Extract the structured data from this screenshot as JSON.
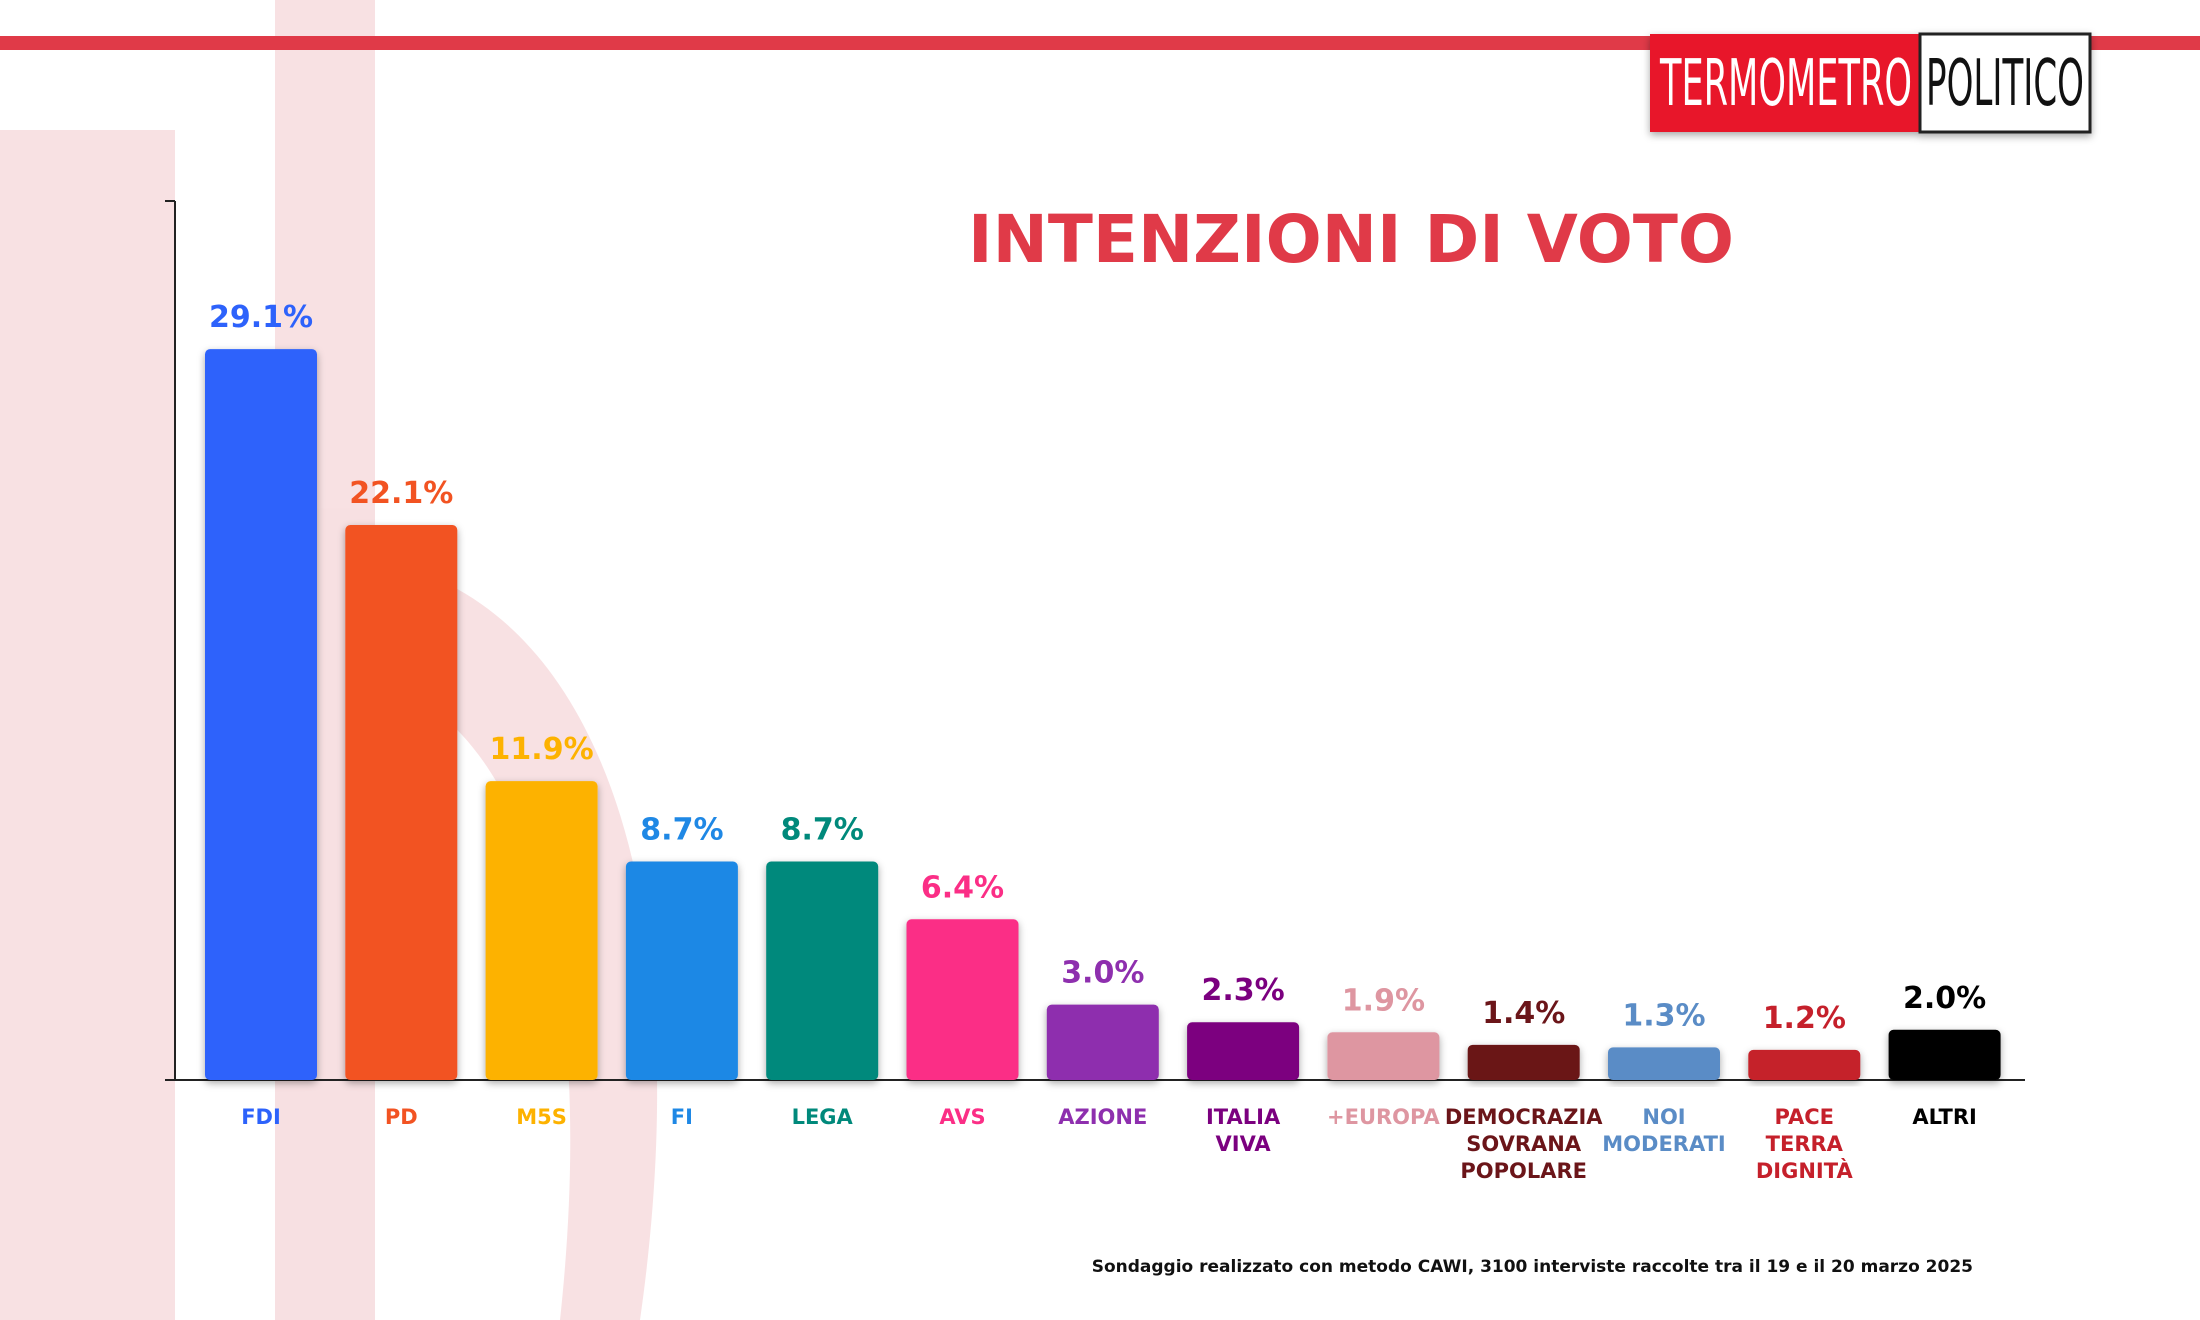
{
  "brand": {
    "part1": "TERMOMETRO",
    "part2": "POLITICO"
  },
  "chart_data": {
    "type": "bar",
    "title": "INTENZIONI DI VOTO",
    "categories": [
      "FDI",
      "PD",
      "M5S",
      "FI",
      "LEGA",
      "AVS",
      "AZIONE",
      "ITALIA\nVIVA",
      "+EUROPA",
      "DEMOCRAZIA\nSOVRANA\nPOPOLARE",
      "NOI\nMODERATI",
      "PACE\nTERRA\nDIGNITÀ",
      "ALTRI"
    ],
    "values": [
      29.1,
      22.1,
      11.9,
      8.7,
      8.7,
      6.4,
      3.0,
      2.3,
      1.9,
      1.4,
      1.3,
      1.2,
      2.0
    ],
    "value_labels": [
      "29.1%",
      "22.1%",
      "11.9%",
      "8.7%",
      "8.7%",
      "6.4%",
      "3.0%",
      "2.3%",
      "1.9%",
      "1.4%",
      "1.3%",
      "1.2%",
      "2.0%"
    ],
    "colors": [
      "#2d62fb",
      "#f25322",
      "#fdb200",
      "#1f88e5",
      "#00897b",
      "#fb2e86",
      "#8e2fae",
      "#7b007f",
      "#de96a1",
      "#6b1519",
      "#5a8cc6",
      "#c5202b",
      "#000000"
    ],
    "ylim": [
      0,
      35
    ],
    "note": "Sondaggio realizzato con metodo CAWI, 3100 interviste raccolte tra il 19 e il 20 marzo 2025"
  }
}
